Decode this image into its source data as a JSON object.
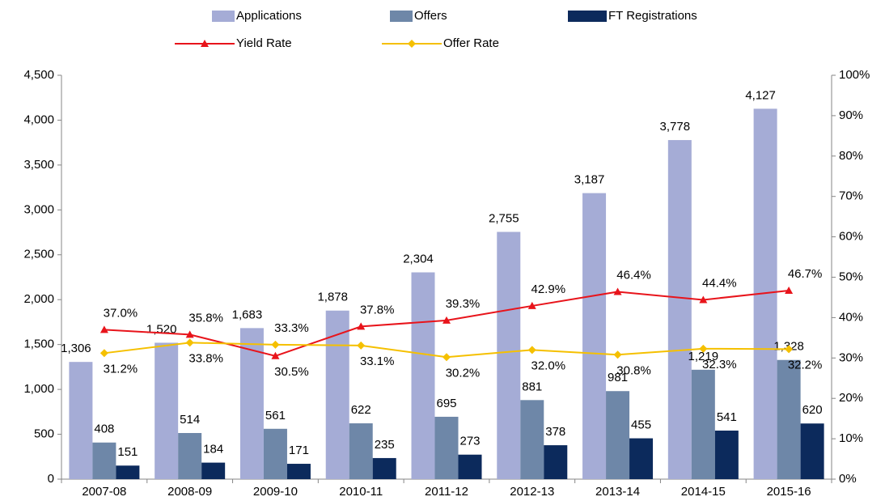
{
  "chart_data": {
    "type": "bar-line",
    "categories": [
      "2007-08",
      "2008-09",
      "2009-10",
      "2010-11",
      "2011-12",
      "2012-13",
      "2013-14",
      "2014-15",
      "2015-16"
    ],
    "series": [
      {
        "name": "Applications",
        "type": "bar",
        "color": "#a5acd6",
        "values": [
          1306,
          1520,
          1683,
          1878,
          2304,
          2755,
          3187,
          3778,
          4127
        ],
        "value_labels": [
          "1,306",
          "1,520",
          "1,683",
          "1,878",
          "2,304",
          "2,755",
          "3,187",
          "3,778",
          "4,127"
        ]
      },
      {
        "name": "Offers",
        "type": "bar",
        "color": "#6e87a8",
        "values": [
          408,
          514,
          561,
          622,
          695,
          881,
          981,
          1219,
          1328
        ],
        "value_labels": [
          "408",
          "514",
          "561",
          "622",
          "695",
          "881",
          "981",
          "1,219",
          "1,328"
        ]
      },
      {
        "name": "FT Registrations",
        "type": "bar",
        "color": "#0c2a5c",
        "values": [
          151,
          184,
          171,
          235,
          273,
          378,
          455,
          541,
          620
        ]
      },
      {
        "name": "Yield Rate",
        "type": "line",
        "axis": "y2",
        "color": "#e8141b",
        "marker": "triangle",
        "values": [
          37.0,
          35.8,
          30.5,
          37.8,
          39.3,
          42.9,
          46.4,
          44.4,
          46.7
        ],
        "value_labels": [
          "37.0%",
          "35.8%",
          "30.5%",
          "37.8%",
          "39.3%",
          "42.9%",
          "46.4%",
          "44.4%",
          "46.7%"
        ]
      },
      {
        "name": "Offer Rate",
        "type": "line",
        "axis": "y2",
        "color": "#f5c000",
        "marker": "diamond",
        "values": [
          31.2,
          33.8,
          33.3,
          33.1,
          30.2,
          32.0,
          30.8,
          32.3,
          32.2
        ],
        "value_labels": [
          "31.2%",
          "33.8%",
          "33.3%",
          "33.1%",
          "30.2%",
          "32.0%",
          "30.8%",
          "32.3%",
          "32.2%"
        ]
      }
    ],
    "ylim": [
      0,
      4500
    ],
    "yticks": [
      0,
      500,
      {
        "value": 1000,
        "label": "1,000"
      },
      {
        "value": 1500,
        "label": "1,500"
      },
      {
        "value": 2000,
        "label": "2,000"
      },
      {
        "value": 2500,
        "label": "2,500"
      },
      {
        "value": 3000,
        "label": "3,000"
      },
      {
        "value": 3500,
        "label": "3,500"
      },
      {
        "value": 4000,
        "label": "4,000"
      },
      {
        "value": 4500,
        "label": "4,500"
      }
    ],
    "y2lim": [
      0,
      100
    ],
    "y2ticks": [
      {
        "value": 0,
        "label": "0%"
      },
      {
        "value": 10,
        "label": "10%"
      },
      {
        "value": 20,
        "label": "20%"
      },
      {
        "value": 30,
        "label": "30%"
      },
      {
        "value": 40,
        "label": "40%"
      },
      {
        "value": 50,
        "label": "50%"
      },
      {
        "value": 60,
        "label": "60%"
      },
      {
        "value": 70,
        "label": "70%"
      },
      {
        "value": 80,
        "label": "80%"
      },
      {
        "value": 90,
        "label": "90%"
      },
      {
        "value": 100,
        "label": "100%"
      }
    ],
    "legend": "top"
  }
}
